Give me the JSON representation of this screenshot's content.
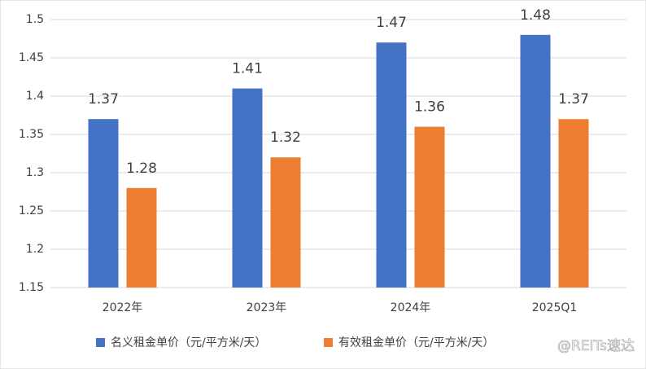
{
  "chart_data": {
    "type": "bar",
    "categories": [
      "2022年",
      "2023年",
      "2024年",
      "2025Q1"
    ],
    "series": [
      {
        "name": "名义租金单价（元/平方米/天）",
        "color": "#4472c4",
        "values": [
          1.37,
          1.41,
          1.47,
          1.48
        ]
      },
      {
        "name": "有效租金单价（元/平方米/天）",
        "color": "#ed7d31",
        "values": [
          1.28,
          1.32,
          1.36,
          1.37
        ]
      }
    ],
    "ylim": [
      1.15,
      1.5
    ],
    "yticks": [
      1.15,
      1.2,
      1.25,
      1.3,
      1.35,
      1.4,
      1.45,
      1.5
    ],
    "grid": true,
    "legend": "bottom",
    "watermark": "@REITs速达"
  }
}
